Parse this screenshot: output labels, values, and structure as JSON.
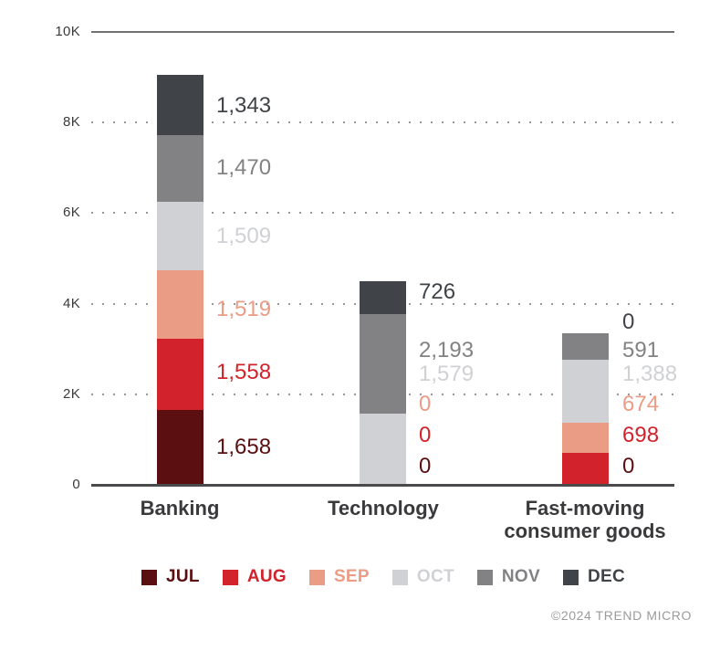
{
  "chart_data": {
    "type": "bar",
    "subtype": "stacked-vertical",
    "title": "",
    "categories": [
      "Banking",
      "Technology",
      "Fast-moving consumer goods"
    ],
    "series": [
      {
        "name": "JUL",
        "color": "#5B0F10",
        "values": [
          1658,
          0,
          0
        ]
      },
      {
        "name": "AUG",
        "color": "#D2232C",
        "values": [
          1558,
          0,
          698
        ]
      },
      {
        "name": "SEP",
        "color": "#EA9C84",
        "values": [
          1519,
          0,
          674
        ]
      },
      {
        "name": "OCT",
        "color": "#D0D1D4",
        "values": [
          1509,
          1579,
          1388
        ]
      },
      {
        "name": "NOV",
        "color": "#828285",
        "values": [
          1470,
          2193,
          591
        ]
      },
      {
        "name": "DEC",
        "color": "#404347",
        "values": [
          1343,
          726,
          0
        ]
      }
    ],
    "category_totals": [
      9057,
      4498,
      3351
    ],
    "y_ticks": [
      {
        "value": 0,
        "label": "0"
      },
      {
        "value": 2000,
        "label": "2K"
      },
      {
        "value": 4000,
        "label": "4K"
      },
      {
        "value": 6000,
        "label": "6K"
      },
      {
        "value": 8000,
        "label": "8K"
      },
      {
        "value": 10000,
        "label": "10K"
      }
    ],
    "ylim": [
      0,
      10000
    ],
    "grid": "dotted-horizontal",
    "legend_position": "bottom",
    "value_label_format": "thousands-comma"
  },
  "footer": {
    "copyright": "©2024 TREND MICRO"
  }
}
